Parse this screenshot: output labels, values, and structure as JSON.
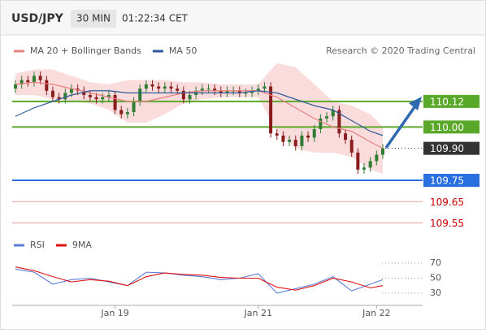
{
  "header": {
    "symbol": "USD/JPY",
    "interval": "30 MIN",
    "time": "01:22:34 CET"
  },
  "chart_data": [
    {
      "type": "candlestick",
      "annotation": "Research © 2020 Trading Central",
      "categories": [
        null,
        null,
        null,
        null,
        null,
        null,
        null,
        null,
        null,
        null,
        null,
        null,
        null,
        null,
        null,
        null,
        "Jan 19",
        null,
        null,
        null,
        null,
        null,
        null,
        null,
        null,
        null,
        null,
        null,
        null,
        null,
        null,
        null,
        null,
        null,
        null,
        null,
        null,
        null,
        null,
        "Jan 21",
        null,
        null,
        null,
        null,
        null,
        null,
        null,
        null,
        null,
        null,
        null,
        null,
        null,
        null,
        null,
        null,
        null,
        null,
        "Jan 22",
        null
      ],
      "open": [
        110.18,
        110.2,
        110.22,
        110.21,
        110.24,
        110.22,
        110.17,
        110.14,
        110.13,
        110.16,
        110.18,
        110.17,
        110.15,
        110.14,
        110.13,
        110.14,
        110.15,
        110.08,
        110.06,
        110.07,
        110.12,
        110.18,
        110.2,
        110.19,
        110.18,
        110.19,
        110.18,
        110.17,
        110.13,
        110.15,
        110.17,
        110.18,
        110.18,
        110.17,
        110.16,
        110.17,
        110.17,
        110.16,
        110.16,
        110.17,
        110.18,
        110.19,
        109.97,
        109.96,
        109.93,
        109.94,
        109.91,
        109.96,
        109.95,
        109.99,
        110.04,
        110.05,
        110.08,
        109.97,
        109.94,
        109.88,
        109.8,
        109.81,
        109.84,
        109.87
      ],
      "high": [
        110.22,
        110.24,
        110.24,
        110.26,
        110.26,
        110.24,
        110.19,
        110.16,
        110.18,
        110.2,
        110.2,
        110.19,
        110.17,
        110.16,
        110.16,
        110.17,
        110.17,
        110.1,
        110.09,
        110.14,
        110.2,
        110.22,
        110.22,
        110.21,
        110.21,
        110.21,
        110.2,
        110.19,
        110.17,
        110.19,
        110.2,
        110.2,
        110.2,
        110.19,
        110.19,
        110.19,
        110.19,
        110.18,
        110.19,
        110.2,
        110.21,
        110.21,
        109.99,
        109.98,
        109.96,
        109.96,
        109.98,
        109.98,
        110.01,
        110.06,
        110.07,
        110.1,
        110.1,
        109.99,
        109.96,
        109.9,
        109.83,
        109.86,
        109.89,
        109.92
      ],
      "low": [
        110.16,
        110.18,
        110.19,
        110.19,
        110.2,
        110.15,
        110.12,
        110.11,
        110.11,
        110.14,
        110.15,
        110.13,
        110.12,
        110.11,
        110.11,
        110.12,
        110.06,
        110.04,
        110.04,
        110.05,
        110.1,
        110.16,
        110.17,
        110.16,
        110.16,
        110.16,
        110.15,
        110.11,
        110.11,
        110.13,
        110.15,
        110.16,
        110.15,
        110.14,
        110.14,
        110.15,
        110.14,
        110.14,
        110.14,
        110.15,
        110.16,
        109.95,
        109.94,
        109.91,
        109.91,
        109.89,
        109.89,
        109.93,
        109.93,
        109.97,
        110.02,
        110.03,
        109.95,
        109.92,
        109.86,
        109.78,
        109.78,
        109.79,
        109.82,
        109.85
      ],
      "close": [
        110.2,
        110.22,
        110.21,
        110.24,
        110.22,
        110.17,
        110.14,
        110.13,
        110.16,
        110.18,
        110.17,
        110.15,
        110.14,
        110.13,
        110.14,
        110.15,
        110.08,
        110.06,
        110.07,
        110.12,
        110.18,
        110.2,
        110.19,
        110.18,
        110.19,
        110.18,
        110.17,
        110.13,
        110.15,
        110.17,
        110.18,
        110.18,
        110.17,
        110.16,
        110.17,
        110.17,
        110.16,
        110.16,
        110.17,
        110.18,
        110.19,
        109.97,
        109.96,
        109.93,
        109.94,
        109.91,
        109.96,
        109.95,
        109.99,
        110.04,
        110.05,
        110.08,
        109.97,
        109.94,
        109.88,
        109.8,
        109.81,
        109.84,
        109.87,
        109.9
      ],
      "up_color": "#2f7d32",
      "down_color": "#8b1c1c",
      "series": [
        {
          "name": "MA 20 + Bollinger Bands",
          "color": "#e8807f",
          "band_color": "#f9d6d6",
          "x": [
            0,
            3,
            6,
            9,
            12,
            15,
            18,
            21,
            24,
            27,
            30,
            33,
            36,
            39,
            42,
            45,
            48,
            51,
            54,
            57,
            59
          ],
          "values": [
            110.2,
            110.21,
            110.2,
            110.18,
            110.16,
            110.14,
            110.12,
            110.12,
            110.14,
            110.16,
            110.17,
            110.17,
            110.17,
            110.17,
            110.14,
            110.09,
            110.04,
            110.0,
            109.98,
            109.93,
            109.9
          ],
          "upper": [
            110.25,
            110.27,
            110.27,
            110.24,
            110.21,
            110.2,
            110.22,
            110.22,
            110.22,
            110.21,
            110.21,
            110.2,
            110.2,
            110.2,
            110.3,
            110.28,
            110.2,
            110.12,
            110.1,
            110.06,
            110.0
          ],
          "lower": [
            110.15,
            110.15,
            110.13,
            110.12,
            110.11,
            110.08,
            110.02,
            110.02,
            110.06,
            110.11,
            110.13,
            110.14,
            110.14,
            110.14,
            109.98,
            109.9,
            109.88,
            109.88,
            109.86,
            109.8,
            109.78
          ]
        },
        {
          "name": "MA 50",
          "color": "#2e5c9a",
          "x": [
            0,
            3,
            6,
            9,
            12,
            15,
            18,
            21,
            24,
            27,
            30,
            33,
            36,
            39,
            42,
            45,
            48,
            51,
            54,
            57,
            59
          ],
          "values": [
            110.05,
            110.09,
            110.12,
            110.15,
            110.17,
            110.17,
            110.16,
            110.16,
            110.16,
            110.16,
            110.16,
            110.16,
            110.16,
            110.17,
            110.16,
            110.13,
            110.1,
            110.08,
            110.03,
            109.98,
            109.96
          ]
        }
      ],
      "ylim": [
        109.51,
        110.31
      ],
      "levels": [
        {
          "value": 110.12,
          "label": "110.12",
          "color": "#5aa82a",
          "line": "solid",
          "box": true
        },
        {
          "value": 110.0,
          "label": "110.00",
          "color": "#5aa82a",
          "line": "solid",
          "box": true
        },
        {
          "value": 109.9,
          "label": "109.90",
          "color": "#333333",
          "line": "dotted",
          "box": true
        },
        {
          "value": 109.75,
          "label": "109.75",
          "color": "#2a6fe0",
          "line": "solid",
          "box": true
        },
        {
          "value": 109.65,
          "label": "109.65",
          "color": "#cc0000",
          "line": "thin",
          "box": false
        },
        {
          "value": 109.55,
          "label": "109.55",
          "color": "#cc0000",
          "line": "thin",
          "box": false
        }
      ]
    },
    {
      "type": "line",
      "x": [
        0,
        3,
        6,
        9,
        12,
        15,
        18,
        21,
        24,
        27,
        30,
        33,
        36,
        39,
        42,
        45,
        48,
        51,
        54,
        57,
        59
      ],
      "series": [
        {
          "name": "RSI",
          "color": "#5b7bd5",
          "values": [
            62,
            58,
            42,
            48,
            50,
            45,
            40,
            58,
            57,
            54,
            52,
            48,
            50,
            56,
            30,
            36,
            42,
            52,
            33,
            42,
            48
          ]
        },
        {
          "name": "9MA",
          "color": "#e01010",
          "values": [
            65,
            60,
            52,
            45,
            48,
            46,
            40,
            52,
            57,
            55,
            54,
            51,
            50,
            50,
            38,
            34,
            40,
            50,
            45,
            37,
            40
          ]
        }
      ],
      "ylim": [
        18,
        82
      ],
      "yticks": [
        30,
        50,
        70
      ]
    }
  ]
}
